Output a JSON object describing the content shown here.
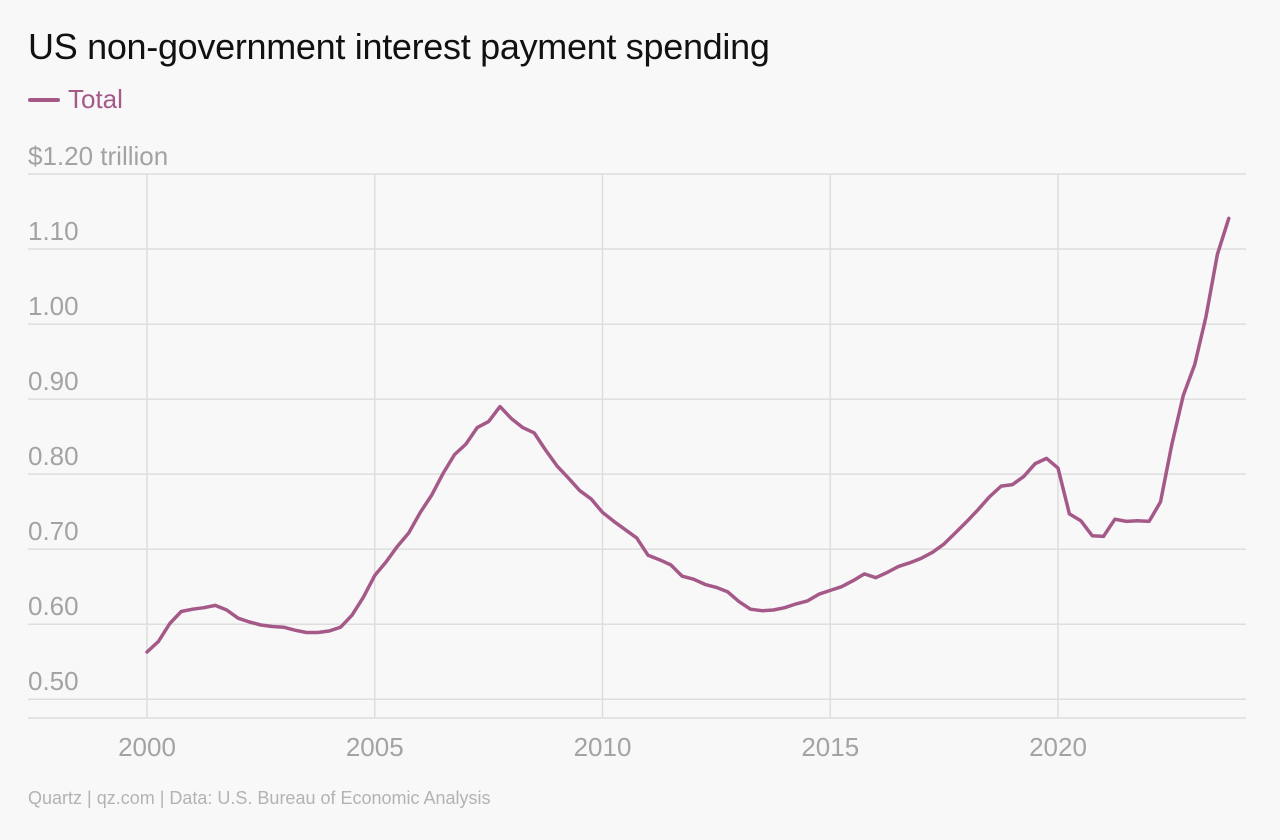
{
  "chart_data": {
    "type": "line",
    "title": "US non-government interest payment spending",
    "source": "Quartz | qz.com | Data: U.S. Bureau of Economic Analysis",
    "y_tick_labels": [
      "$1.20 trillion",
      "1.10",
      "1.00",
      "0.90",
      "0.80",
      "0.70",
      "0.60",
      "0.50"
    ],
    "y_ticks": [
      1.2,
      1.1,
      1.0,
      0.9,
      0.8,
      0.7,
      0.6,
      0.5
    ],
    "x_tick_labels": [
      "2000",
      "2005",
      "2010",
      "2015",
      "2020"
    ],
    "x_ticks": [
      2000,
      2005,
      2010,
      2015,
      2020
    ],
    "xlim": [
      1998,
      2024.5
    ],
    "ylim": [
      0.475,
      1.2
    ],
    "grid": true,
    "legend": "top-left",
    "series": [
      {
        "name": "Total",
        "color": "#a55989",
        "x": [
          2000,
          2000.25,
          2000.5,
          2000.75,
          2001,
          2001.25,
          2001.5,
          2001.75,
          2002,
          2002.25,
          2002.5,
          2002.75,
          2003,
          2003.25,
          2003.5,
          2003.75,
          2004,
          2004.25,
          2004.5,
          2004.75,
          2005,
          2005.25,
          2005.5,
          2005.75,
          2006,
          2006.25,
          2006.5,
          2006.75,
          2007,
          2007.25,
          2007.5,
          2007.75,
          2008,
          2008.25,
          2008.5,
          2008.75,
          2009,
          2009.25,
          2009.5,
          2009.75,
          2010,
          2010.25,
          2010.5,
          2010.75,
          2011,
          2011.25,
          2011.5,
          2011.75,
          2012,
          2012.25,
          2012.5,
          2012.75,
          2013,
          2013.25,
          2013.5,
          2013.75,
          2014,
          2014.25,
          2014.5,
          2014.75,
          2015,
          2015.25,
          2015.5,
          2015.75,
          2016,
          2016.25,
          2016.5,
          2016.75,
          2017,
          2017.25,
          2017.5,
          2017.75,
          2018,
          2018.25,
          2018.5,
          2018.75,
          2019,
          2019.25,
          2019.5,
          2019.75,
          2020,
          2020.25,
          2020.5,
          2020.75,
          2021,
          2021.25,
          2021.5,
          2021.75,
          2022,
          2022.25,
          2022.5,
          2022.75,
          2023,
          2023.25,
          2023.5,
          2023.75
        ],
        "values": [
          0.563,
          0.577,
          0.601,
          0.617,
          0.62,
          0.622,
          0.625,
          0.619,
          0.608,
          0.603,
          0.599,
          0.597,
          0.596,
          0.592,
          0.589,
          0.589,
          0.591,
          0.596,
          0.612,
          0.636,
          0.665,
          0.683,
          0.704,
          0.722,
          0.749,
          0.772,
          0.801,
          0.826,
          0.84,
          0.862,
          0.87,
          0.89,
          0.874,
          0.862,
          0.855,
          0.832,
          0.811,
          0.795,
          0.778,
          0.767,
          0.749,
          0.737,
          0.726,
          0.715,
          0.692,
          0.686,
          0.679,
          0.664,
          0.66,
          0.653,
          0.649,
          0.643,
          0.63,
          0.62,
          0.618,
          0.619,
          0.622,
          0.627,
          0.631,
          0.64,
          0.645,
          0.65,
          0.658,
          0.667,
          0.662,
          0.669,
          0.677,
          0.682,
          0.688,
          0.696,
          0.707,
          0.722,
          0.737,
          0.753,
          0.77,
          0.784,
          0.786,
          0.797,
          0.814,
          0.821,
          0.808,
          0.747,
          0.738,
          0.718,
          0.717,
          0.74,
          0.737,
          0.738,
          0.737,
          0.763,
          0.84,
          0.905,
          0.946,
          1.01,
          1.093,
          1.141
        ]
      }
    ]
  }
}
